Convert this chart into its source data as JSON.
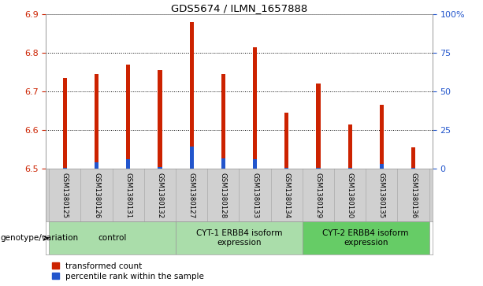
{
  "title": "GDS5674 / ILMN_1657888",
  "samples": [
    "GSM1380125",
    "GSM1380126",
    "GSM1380131",
    "GSM1380132",
    "GSM1380127",
    "GSM1380128",
    "GSM1380133",
    "GSM1380134",
    "GSM1380129",
    "GSM1380130",
    "GSM1380135",
    "GSM1380136"
  ],
  "red_values": [
    6.735,
    6.745,
    6.77,
    6.755,
    6.88,
    6.745,
    6.815,
    6.645,
    6.72,
    6.615,
    6.665,
    6.555
  ],
  "blue_values": [
    6.502,
    6.516,
    6.524,
    6.504,
    6.557,
    6.527,
    6.525,
    6.502,
    6.503,
    6.502,
    6.513,
    6.502
  ],
  "ymin": 6.5,
  "ymax": 6.9,
  "yticks_left": [
    6.5,
    6.6,
    6.7,
    6.8,
    6.9
  ],
  "yticks_right": [
    0,
    25,
    50,
    75,
    100
  ],
  "yticks_right_labels": [
    "0",
    "25",
    "50",
    "75",
    "100%"
  ],
  "groups": [
    {
      "label": "control",
      "start": 0,
      "end": 3,
      "color": "#aaddaa"
    },
    {
      "label": "CYT-1 ERBB4 isoform\nexpression",
      "start": 4,
      "end": 7,
      "color": "#aaddaa"
    },
    {
      "label": "CYT-2 ERBB4 isoform\nexpression",
      "start": 8,
      "end": 11,
      "color": "#66cc66"
    }
  ],
  "bar_width": 0.13,
  "bar_color_red": "#cc2200",
  "bar_color_blue": "#2255cc",
  "bg_color": "#d0d0d0",
  "plot_bg": "#ffffff",
  "grid_color": "#000000",
  "title_color": "#000000",
  "left_tick_color": "#cc2200",
  "right_tick_color": "#2255cc",
  "genotype_label": "genotype/variation",
  "legend_red": "transformed count",
  "legend_blue": "percentile rank within the sample"
}
